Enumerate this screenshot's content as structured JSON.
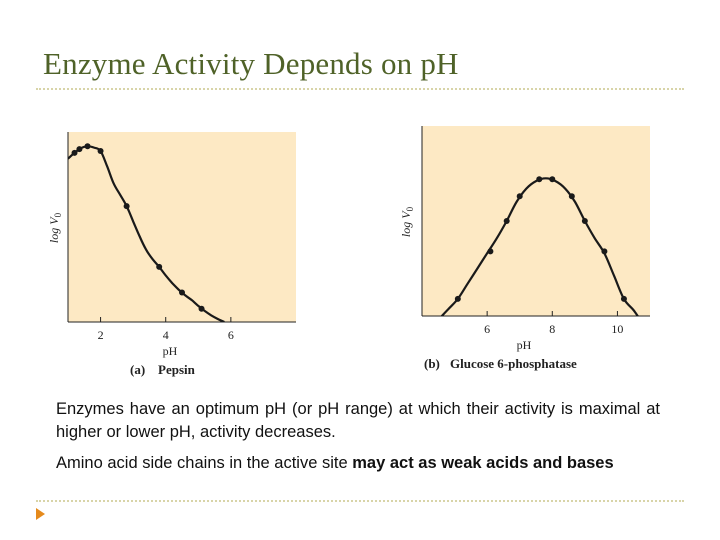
{
  "slide": {
    "title": "Enzyme Activity Depends on pH",
    "paragraph1": "Enzymes have an optimum pH (or pH range) at which their activity is maximal at higher or lower pH, activity decreases.",
    "paragraph2_prefix": "Amino acid side chains in the active site ",
    "paragraph2_bold": "may act as weak acids and bases"
  },
  "colors": {
    "title": "#4f6228",
    "plot_bg": "#fde9c4",
    "curve": "#1a1a1a",
    "rule": "#d8d4a8",
    "bullet": "#e58a1c"
  },
  "bullet_icon": "triangle-right-icon",
  "chart_data": [
    {
      "type": "line",
      "panel_letter": "(a)",
      "panel_name": "Pepsin",
      "xlabel": "pH",
      "ylabel": "log V",
      "ylabel_sub": "0",
      "xlim": [
        1,
        8
      ],
      "ylim": [
        0,
        1
      ],
      "xticks": [
        2,
        4,
        6
      ],
      "yticks": [],
      "grid": false,
      "legend": "none",
      "series": [
        {
          "x": [
            1.2,
            1.35,
            1.6,
            2.0,
            2.8,
            3.8,
            4.5,
            5.1
          ],
          "y": [
            0.89,
            0.91,
            0.925,
            0.9,
            0.61,
            0.29,
            0.155,
            0.07
          ],
          "markers": [
            true,
            true,
            true,
            true,
            true,
            true,
            true,
            true
          ],
          "curve_x": [
            1.0,
            1.2,
            1.4,
            1.6,
            1.8,
            2.0,
            2.2,
            2.4,
            2.6,
            2.8,
            3.0,
            3.2,
            3.4,
            3.6,
            3.8,
            4.0,
            4.2,
            4.4,
            4.6,
            4.8,
            5.0,
            5.2,
            5.4,
            5.6,
            5.8
          ],
          "curve_y": [
            0.86,
            0.89,
            0.915,
            0.925,
            0.918,
            0.9,
            0.82,
            0.73,
            0.67,
            0.61,
            0.53,
            0.45,
            0.38,
            0.33,
            0.29,
            0.245,
            0.205,
            0.17,
            0.14,
            0.115,
            0.085,
            0.058,
            0.035,
            0.016,
            0.0
          ]
        }
      ]
    },
    {
      "type": "line",
      "panel_letter": "(b)",
      "panel_name": "Glucose 6-phosphatase",
      "xlabel": "pH",
      "ylabel": "log V",
      "ylabel_sub": "0",
      "xlim": [
        4,
        11
      ],
      "ylim": [
        0,
        1
      ],
      "xticks": [
        6,
        8,
        10
      ],
      "yticks": [],
      "grid": false,
      "legend": "none",
      "series": [
        {
          "x": [
            5.1,
            6.1,
            6.6,
            7.0,
            7.6,
            8.0,
            8.6,
            9.0,
            9.6,
            10.2
          ],
          "y": [
            0.09,
            0.34,
            0.5,
            0.63,
            0.72,
            0.72,
            0.63,
            0.5,
            0.34,
            0.09
          ],
          "markers": [
            true,
            true,
            true,
            true,
            true,
            true,
            true,
            true,
            true,
            true
          ],
          "curve_x": [
            4.5,
            4.8,
            5.1,
            5.4,
            5.7,
            6.0,
            6.3,
            6.6,
            6.9,
            7.2,
            7.5,
            7.8,
            8.1,
            8.4,
            8.7,
            9.0,
            9.3,
            9.6,
            9.9,
            10.2,
            10.5,
            10.7
          ],
          "curve_y": [
            -0.02,
            0.035,
            0.09,
            0.17,
            0.25,
            0.33,
            0.41,
            0.5,
            0.6,
            0.67,
            0.71,
            0.725,
            0.71,
            0.67,
            0.6,
            0.5,
            0.41,
            0.33,
            0.21,
            0.09,
            0.03,
            -0.02
          ]
        }
      ]
    }
  ]
}
